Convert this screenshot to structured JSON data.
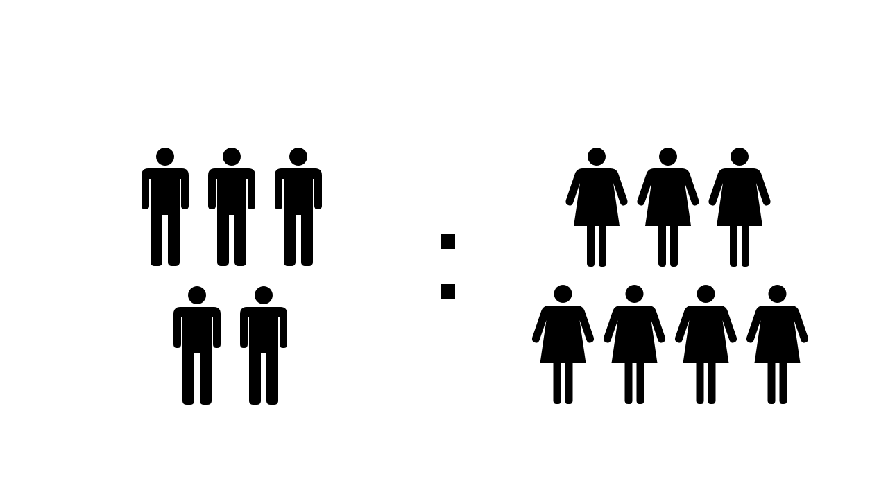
{
  "diagram": {
    "type": "ratio-pictogram",
    "left_group": {
      "icon": "man-icon",
      "count": 5,
      "rows": [
        3,
        2
      ]
    },
    "separator": {
      "icon": "colon-icon",
      "symbol": ":"
    },
    "right_group": {
      "icon": "woman-icon",
      "count": 7,
      "rows": [
        3,
        4
      ]
    },
    "colors": {
      "figure": "#000000",
      "background": "#ffffff"
    }
  }
}
